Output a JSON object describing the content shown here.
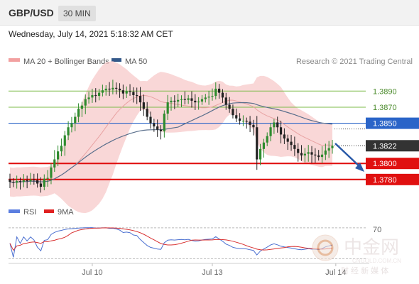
{
  "header": {
    "pair": "GBP/USD",
    "timeframe": "30 MIN"
  },
  "timestamp": "Wednesday, July 14, 2021 5:18:32 AM CET",
  "legend": {
    "bollinger": "MA 20 + Bollinger Bands",
    "ma50": "MA 50",
    "rsi": "RSI",
    "rsi_ma": "9MA",
    "credit": "Research © 2021 Trading Central"
  },
  "watermark": {
    "brand": "中金网",
    "site": "CNGOLD.COM.CN",
    "tagline": "财 经 新 媒 体"
  },
  "colors": {
    "green_level": "#7dbb4a",
    "blue_level": "#2a64c8",
    "red_level": "#e01010",
    "bollinger": "#f7c9c9",
    "ma20": "#e8a2a2",
    "ma50": "#5a6f8c",
    "candle_up": "#2e8b2e",
    "candle_down": "#222222",
    "rsi": "#4a6fd0",
    "rsi_ma": "#d83030",
    "arrow": "#2a5aa8"
  },
  "chart_data": {
    "type": "candlestick",
    "instrument": "GBP/USD",
    "timeframe": "30 MIN",
    "y_range": [
      1.3756,
      1.3915
    ],
    "x_labels": [
      {
        "index": 24,
        "label": "Jul 10"
      },
      {
        "index": 59,
        "label": "Jul 13"
      },
      {
        "index": 95,
        "label": "Jul 14"
      }
    ],
    "levels": [
      {
        "value": 1.389,
        "label": "1.3890",
        "kind": "resistance"
      },
      {
        "value": 1.387,
        "label": "1.3870",
        "kind": "resistance"
      },
      {
        "value": 1.385,
        "label": "1.3850",
        "kind": "pivot"
      },
      {
        "value": 1.38,
        "label": "1.3800",
        "kind": "support"
      },
      {
        "value": 1.378,
        "label": "1.3780",
        "kind": "support"
      }
    ],
    "last_price": {
      "value": 1.3822,
      "label": "1.3822"
    },
    "closes": [
      1.3777,
      1.3776,
      1.3778,
      1.3777,
      1.3779,
      1.3778,
      1.378,
      1.3779,
      1.3775,
      1.3771,
      1.3781,
      1.3782,
      1.3795,
      1.3805,
      1.3815,
      1.3822,
      1.3835,
      1.3845,
      1.385,
      1.3858,
      1.3868,
      1.3872,
      1.388,
      1.3882,
      1.3885,
      1.3884,
      1.3888,
      1.3891,
      1.3893,
      1.3892,
      1.3894,
      1.3893,
      1.3891,
      1.3887,
      1.389,
      1.3889,
      1.3885,
      1.3884,
      1.3876,
      1.3868,
      1.3858,
      1.385,
      1.3846,
      1.3842,
      1.384,
      1.3862,
      1.3876,
      1.3878,
      1.3877,
      1.3879,
      1.388,
      1.3879,
      1.3881,
      1.3878,
      1.3876,
      1.3877,
      1.388,
      1.3882,
      1.3883,
      1.3884,
      1.3893,
      1.3888,
      1.3882,
      1.3873,
      1.3868,
      1.386,
      1.3856,
      1.3853,
      1.3853,
      1.3852,
      1.3848,
      1.3845,
      1.3805,
      1.3818,
      1.3826,
      1.3834,
      1.3845,
      1.3851,
      1.3845,
      1.3836,
      1.3831,
      1.3827,
      1.3823,
      1.3818,
      1.3813,
      1.381,
      1.3812,
      1.3814,
      1.3811,
      1.381,
      1.3808,
      1.3811,
      1.3816,
      1.3819,
      1.3822
    ],
    "rsi": {
      "level": 70,
      "level_label": "70"
    },
    "forecast": "down"
  }
}
